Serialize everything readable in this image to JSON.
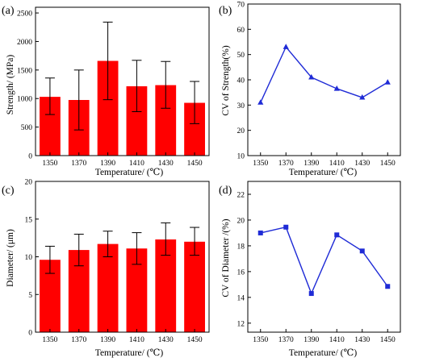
{
  "chart_data": [
    {
      "panel_label": "(a)",
      "type": "bar",
      "categories": [
        "1350",
        "1370",
        "1390",
        "1410",
        "1430",
        "1450"
      ],
      "values": [
        1030,
        975,
        1660,
        1215,
        1235,
        925
      ],
      "error_upper": [
        1360,
        1500,
        2340,
        1670,
        1650,
        1300
      ],
      "error_lower": [
        720,
        450,
        980,
        770,
        830,
        560
      ],
      "xlabel": "Temperature/ (℃)",
      "ylabel": "Strength/ (MPa)",
      "ylim": [
        0,
        2600
      ],
      "yticks": [
        "0",
        "500",
        "1000",
        "1500",
        "2000",
        "2500"
      ],
      "bar_color": "#ff0000",
      "grid": false
    },
    {
      "panel_label": "(b)",
      "type": "line",
      "x": [
        "1350",
        "1370",
        "1390",
        "1410",
        "1430",
        "1450"
      ],
      "y": [
        31,
        53,
        41,
        36.5,
        33,
        39
      ],
      "xlabel": "Temperature/ (℃)",
      "ylabel": "CV of Strength(%)",
      "ylim": [
        10,
        70
      ],
      "yticks": [
        "10",
        "20",
        "30",
        "40",
        "50",
        "60",
        "70"
      ],
      "marker": "triangle",
      "line_color": "#1f2bd6",
      "grid": false
    },
    {
      "panel_label": "(c)",
      "type": "bar",
      "categories": [
        "1350",
        "1370",
        "1390",
        "1410",
        "1430",
        "1450"
      ],
      "values": [
        9.6,
        10.9,
        11.7,
        11.1,
        12.3,
        12.0
      ],
      "error_upper": [
        11.4,
        13.0,
        13.4,
        13.2,
        14.5,
        13.9
      ],
      "error_lower": [
        7.8,
        8.8,
        10.0,
        9.0,
        10.2,
        10.2
      ],
      "xlabel": "Temperature/ (℃)",
      "ylabel": "Diameter/ (μm)",
      "ylim": [
        0,
        20
      ],
      "yticks": [
        "0",
        "5",
        "10",
        "15",
        "20"
      ],
      "bar_color": "#ff0000",
      "grid": false
    },
    {
      "panel_label": "(d)",
      "type": "line",
      "x": [
        "1350",
        "1370",
        "1390",
        "1410",
        "1430",
        "1450"
      ],
      "y": [
        19.0,
        19.45,
        14.3,
        18.85,
        17.6,
        14.85
      ],
      "xlabel": "Temperature/ (℃)",
      "ylabel": "CV of Diameter /(%)",
      "ylim": [
        11.3,
        23
      ],
      "yticks": [
        "12",
        "14",
        "16",
        "18",
        "20",
        "22"
      ],
      "marker": "square",
      "line_color": "#1f2bd6",
      "grid": false
    }
  ]
}
